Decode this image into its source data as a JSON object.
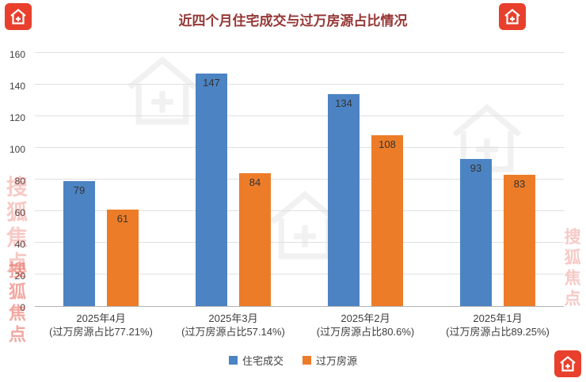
{
  "title": "近四个月住宅成交与过万房源占比情况",
  "watermark": {
    "brand": "搜狐焦点"
  },
  "chart_data": {
    "type": "bar",
    "title": "近四个月住宅成交与过万房源占比情况",
    "categories": [
      "2025年4月",
      "2025年3月",
      "2025年2月",
      "2025年1月"
    ],
    "category_sublabels": [
      "(过万房源占比77.21%)",
      "(过万房源占比57.14%)",
      "(过万房源占比80.6%)",
      "(过万房源占比89.25%)"
    ],
    "series": [
      {
        "name": "住宅成交",
        "color": "#4c83c3",
        "values": [
          79,
          147,
          134,
          93
        ]
      },
      {
        "name": "过万房源",
        "color": "#ed7c28",
        "values": [
          61,
          84,
          108,
          83
        ]
      }
    ],
    "ylim": [
      0,
      160
    ],
    "yticks": [
      0,
      20,
      40,
      60,
      80,
      100,
      120,
      140,
      160
    ],
    "grid": true,
    "legend_position": "bottom"
  },
  "colors": {
    "title": "#953735",
    "bar_blue": "#4c83c3",
    "bar_orange": "#ed7c28",
    "gridline": "#e0e0e0",
    "watermark_red": "#e8402d"
  }
}
